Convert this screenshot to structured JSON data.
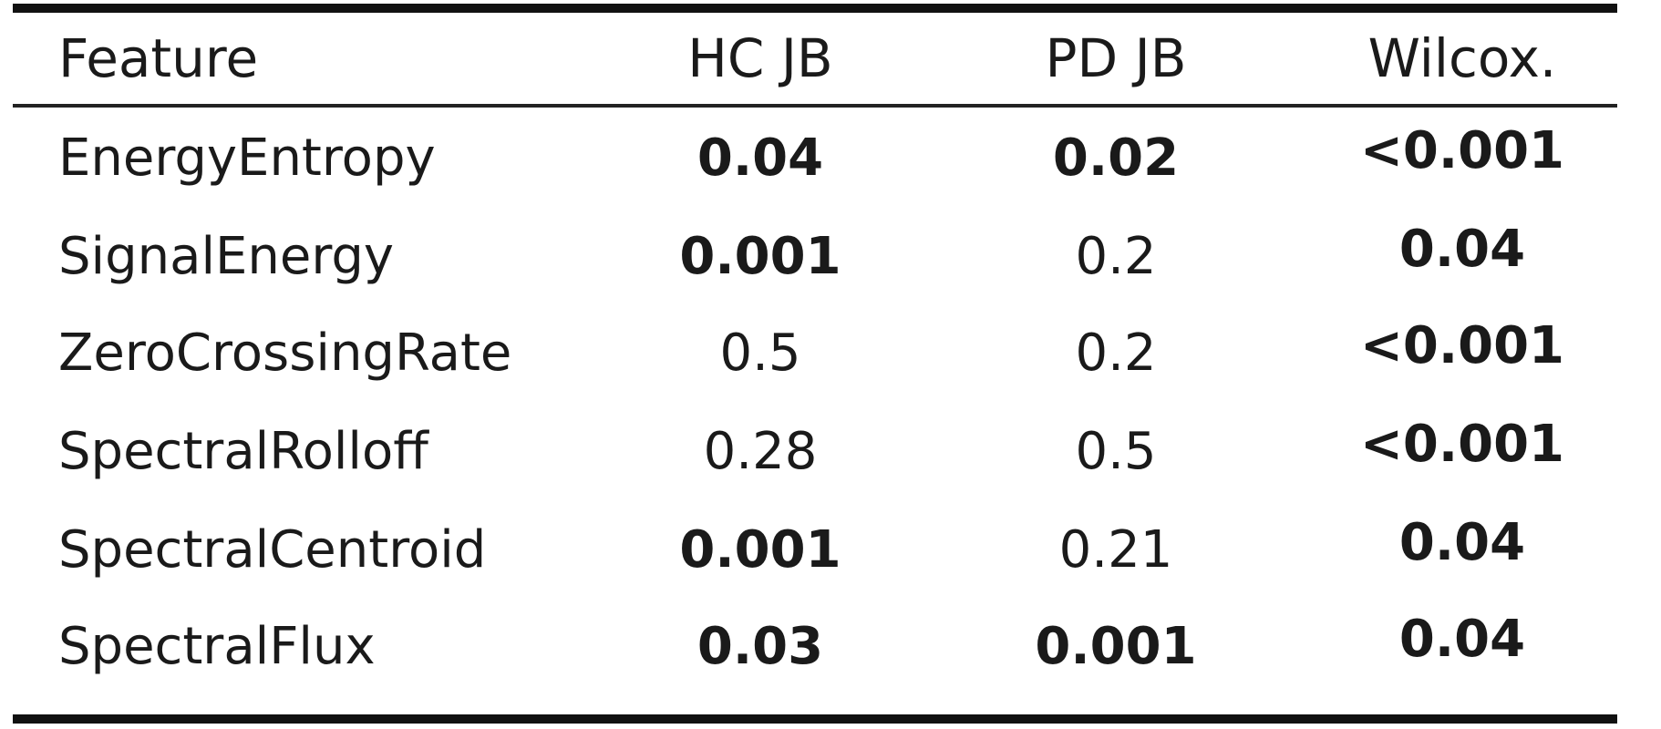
{
  "table": {
    "headers": {
      "feature": "Feature",
      "hc_jb": "HC JB",
      "pd_jb": "PD JB",
      "wilcox": "Wilcox."
    },
    "rows": [
      {
        "feature": "EnergyEntropy",
        "hc_jb": "0.04",
        "pd_jb": "0.02",
        "wilcox": "<0.001",
        "hc_bold": true,
        "pd_bold": true,
        "wil_bold": true
      },
      {
        "feature": "SignalEnergy",
        "hc_jb": "0.001",
        "pd_jb": "0.2",
        "wilcox": "0.04",
        "hc_bold": true,
        "pd_bold": false,
        "wil_bold": true
      },
      {
        "feature": "ZeroCrossingRate",
        "hc_jb": "0.5",
        "pd_jb": "0.2",
        "wilcox": "<0.001",
        "hc_bold": false,
        "pd_bold": false,
        "wil_bold": true
      },
      {
        "feature": "SpectralRolloff",
        "hc_jb": "0.28",
        "pd_jb": "0.5",
        "wilcox": "<0.001",
        "hc_bold": false,
        "pd_bold": false,
        "wil_bold": true
      },
      {
        "feature": "SpectralCentroid",
        "hc_jb": "0.001",
        "pd_jb": "0.21",
        "wilcox": "0.04",
        "hc_bold": true,
        "pd_bold": false,
        "wil_bold": true
      },
      {
        "feature": "SpectralFlux",
        "hc_jb": "0.03",
        "pd_jb": "0.001",
        "wilcox": "0.04",
        "hc_bold": true,
        "pd_bold": true,
        "wil_bold": true
      }
    ]
  }
}
